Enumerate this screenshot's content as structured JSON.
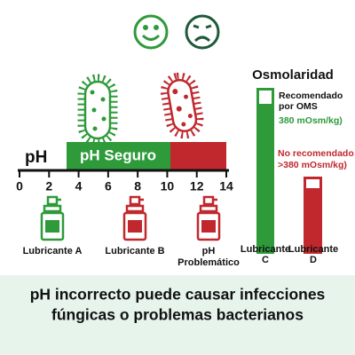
{
  "ph_scale": {
    "label": "pH",
    "safe_zone": "pH Seguro",
    "ticks": [
      0,
      2,
      4,
      6,
      8,
      10,
      12,
      14
    ]
  },
  "products": [
    {
      "lines": [
        "Lubricante A"
      ]
    },
    {
      "lines": [
        "Lubricante B"
      ]
    },
    {
      "lines": [
        "pH",
        "Problemático"
      ]
    }
  ],
  "osmolarity": {
    "title": "Osmolaridad",
    "recommended": {
      "lines": [
        "Recomendado",
        "por OMS"
      ],
      "value": "380 mOsm/kg)"
    },
    "not_recommended": {
      "lines": [
        "No recomendado",
        ">380 mOsm/kg)"
      ]
    },
    "products": [
      {
        "lines": [
          "Lubricante",
          "C"
        ]
      },
      {
        "lines": [
          "Lubricante",
          "D"
        ]
      }
    ]
  },
  "footer": {
    "lines": [
      "pH incorrecto puede causar infecciones",
      "fúngicas o problemas bacterianos"
    ]
  }
}
